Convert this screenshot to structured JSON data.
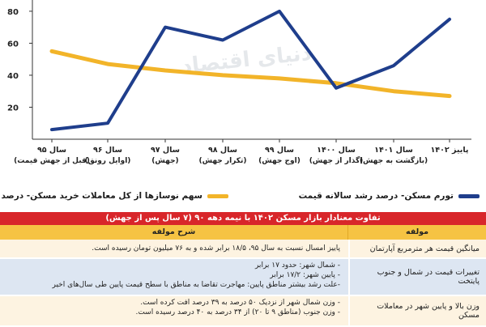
{
  "chart_data": {
    "type": "line",
    "categories": [
      "سال ۹۵\n(قبل از جهش قیمت)",
      "سال ۹۶\n(اوایل رونق)",
      "سال ۹۷\n(جهش)",
      "سال ۹۸\n(تکرار جهش)",
      "سال ۹۹\n(اوج جهش)",
      "سال ۱۴۰۰\n(گذار از جهش)",
      "سال ۱۴۰۱\n(بازگشت به جهش)",
      "پاییز ۱۴۰۲"
    ],
    "series": [
      {
        "name": "تورم مسکن- درصد رشد سالانه قیمت",
        "color": "#1f3e8c",
        "values": [
          6,
          10,
          70,
          62,
          80,
          32,
          46,
          75
        ]
      },
      {
        "name": "سهم نوسازها از کل معاملات خرید مسکن- درصد",
        "color": "#f2b429",
        "values": [
          55,
          47,
          43,
          40,
          38,
          35,
          30,
          27
        ]
      }
    ],
    "yticks": [
      "20",
      "40",
      "60",
      "80"
    ],
    "ylim": [
      0,
      85
    ],
    "grid": false,
    "legend_position": "bottom"
  },
  "watermark": "دنیای اقتصاد",
  "table": {
    "title": "تفاوت معنادار بازار مسکن ۱۴۰۲ با نیمه دهه ۹۰ (۷ سال پس از جهش)",
    "col_item": "مولفه",
    "col_desc": "شرح مولفه",
    "rows": [
      {
        "item": "میانگین قیمت هر مترمربع آپارتمان",
        "desc": [
          "پاییز امسال نسبت به سال ۹۵، ۱۸/۵ برابر شده و به ۷۶ میلیون تومان رسیده است."
        ]
      },
      {
        "item": "تغییرات قیمت در شمال و جنوب پایتخت",
        "desc": [
          "- شمال شهر: حدود ۱۷ برابر",
          "- پایین شهر: ۱۷/۲ برابر",
          "-علت رشد بیشتر مناطق پایین: مهاجرت تقاضا به مناطق با سطح قیمت پایین طی سال‌های اخیر"
        ]
      },
      {
        "item": "وزن بالا و پایین شهر در معاملات مسکن",
        "desc": [
          "- وزن شمال شهر از نزدیک ۵۰ درصد به ۳۹ درصد افت کرده است.",
          "- وزن جنوب (مناطق ۹ تا ۲۰) از ۳۴ درصد به ۴۰ درصد رسیده است."
        ]
      }
    ]
  }
}
